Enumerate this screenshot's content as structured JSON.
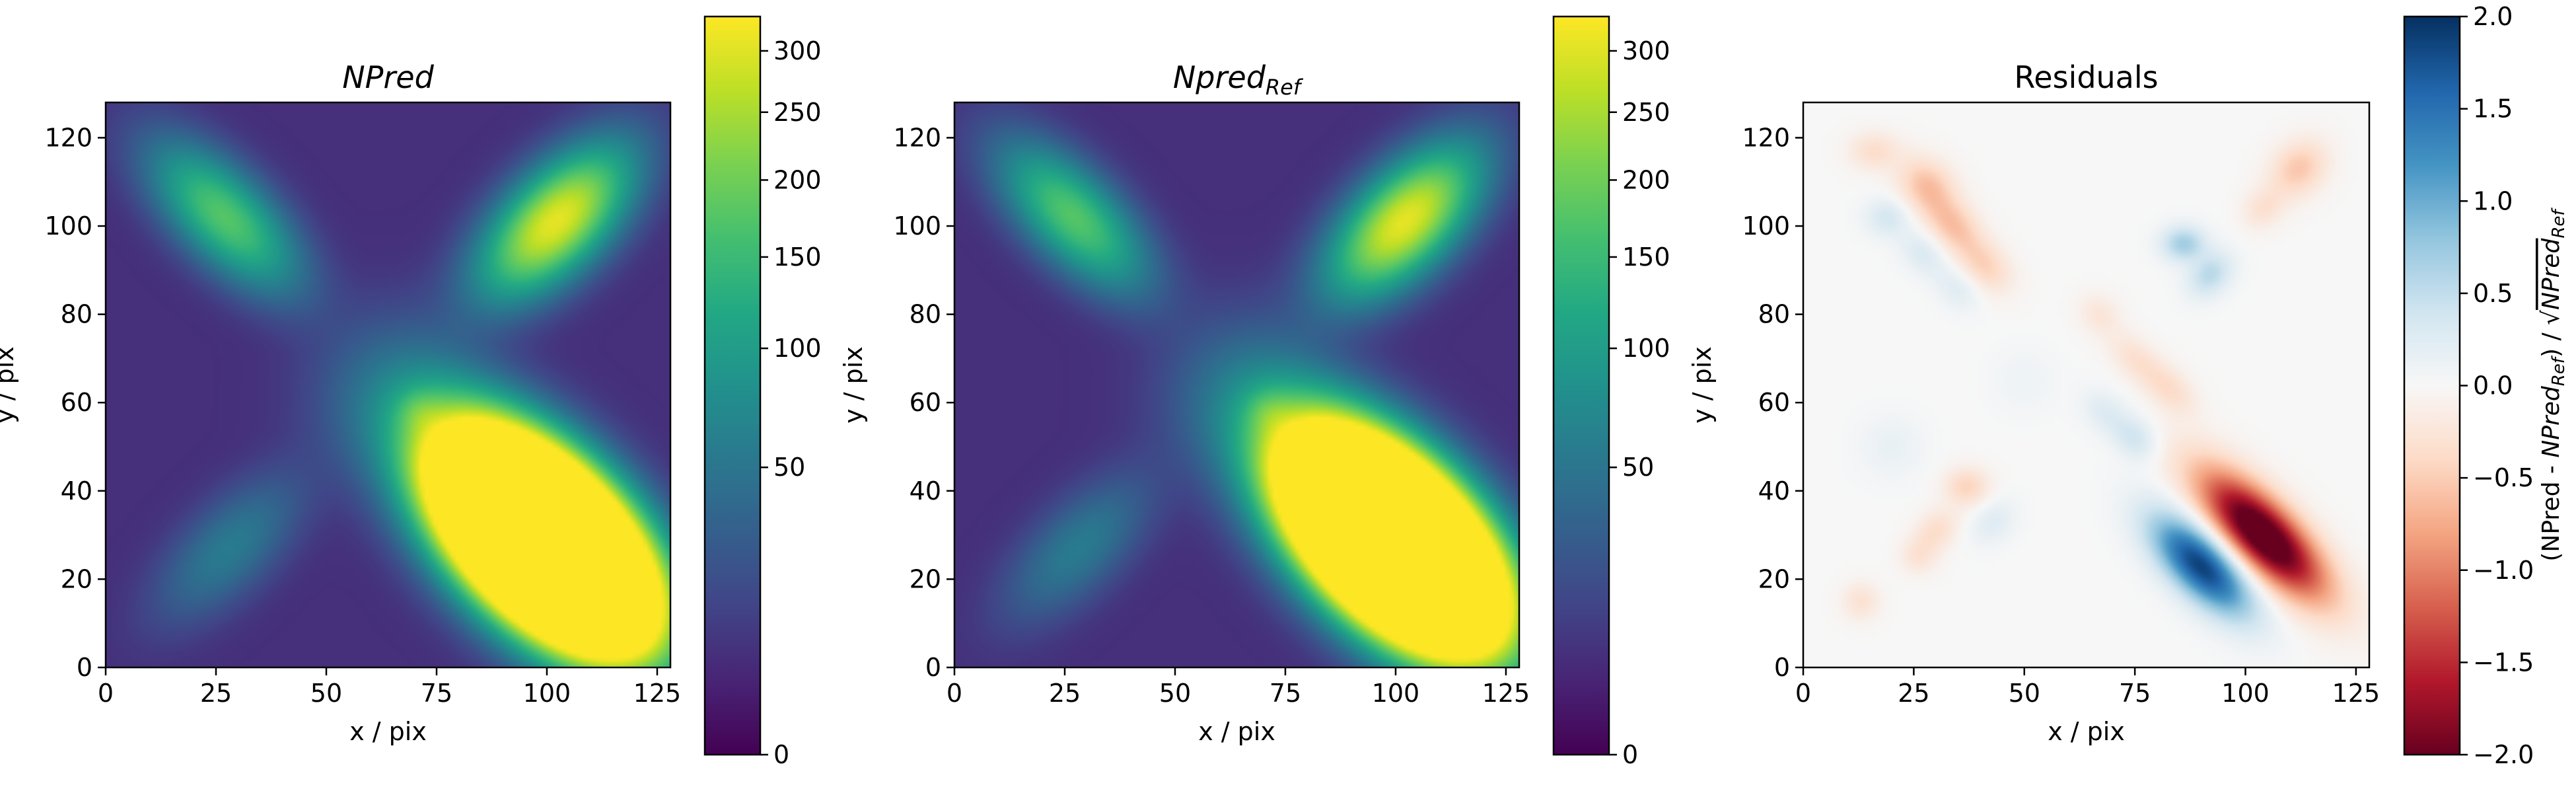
{
  "chart_data": [
    {
      "type": "heatmap",
      "title": "NPred",
      "title_style": "italic",
      "xlabel": "x / pix",
      "ylabel": "y / pix",
      "xlim": [
        0,
        128
      ],
      "ylim": [
        0,
        128
      ],
      "xticks": [
        0,
        25,
        50,
        75,
        100,
        125
      ],
      "yticks": [
        0,
        20,
        40,
        60,
        80,
        100,
        120
      ],
      "colormap": "viridis",
      "colorbar": {
        "scale": "sqrt",
        "range": [
          0,
          330
        ],
        "ticks": [
          0,
          50,
          100,
          150,
          200,
          250,
          300
        ],
        "label": ""
      },
      "components": [
        {
          "x": 27,
          "y": 102,
          "sx": 13,
          "sy": 6,
          "angle": -45,
          "peak": 170
        },
        {
          "x": 102,
          "y": 101,
          "sx": 13,
          "sy": 6.5,
          "angle": 45,
          "peak": 300
        },
        {
          "x": 67,
          "y": 61,
          "sx": 12,
          "sy": 12,
          "angle": 0,
          "peak": 40
        },
        {
          "x": 71,
          "y": 58,
          "sx": 3.5,
          "sy": 3.5,
          "angle": 0,
          "peak": 40
        },
        {
          "x": 28,
          "y": 27,
          "sx": 13,
          "sy": 6,
          "angle": 45,
          "peak": 50
        },
        {
          "x": 99,
          "y": 29,
          "sx": 17,
          "sy": 9,
          "angle": -45,
          "peak": 2400
        }
      ]
    },
    {
      "type": "heatmap",
      "title": "Npred",
      "title_subscript": "Ref",
      "title_style": "italic",
      "xlabel": "x / pix",
      "ylabel": "y / pix",
      "xlim": [
        0,
        128
      ],
      "ylim": [
        0,
        128
      ],
      "xticks": [
        0,
        25,
        50,
        75,
        100,
        125
      ],
      "yticks": [
        0,
        20,
        40,
        60,
        80,
        100,
        120
      ],
      "colormap": "viridis",
      "colorbar": {
        "scale": "sqrt",
        "range": [
          0,
          330
        ],
        "ticks": [
          0,
          50,
          100,
          150,
          200,
          250,
          300
        ],
        "label": ""
      },
      "components": [
        {
          "x": 27,
          "y": 102,
          "sx": 13,
          "sy": 6,
          "angle": -45,
          "peak": 170
        },
        {
          "x": 102,
          "y": 101,
          "sx": 13,
          "sy": 6.5,
          "angle": 45,
          "peak": 300
        },
        {
          "x": 67,
          "y": 61,
          "sx": 12,
          "sy": 12,
          "angle": 0,
          "peak": 40
        },
        {
          "x": 71,
          "y": 58,
          "sx": 3.5,
          "sy": 3.5,
          "angle": 0,
          "peak": 40
        },
        {
          "x": 28,
          "y": 27,
          "sx": 13,
          "sy": 6,
          "angle": 45,
          "peak": 50
        },
        {
          "x": 99,
          "y": 29,
          "sx": 17,
          "sy": 9,
          "angle": -45,
          "peak": 2400
        }
      ]
    },
    {
      "type": "heatmap",
      "title": "Residuals",
      "xlabel": "x / pix",
      "ylabel": "y / pix",
      "xlim": [
        0,
        128
      ],
      "ylim": [
        0,
        128
      ],
      "xticks": [
        0,
        25,
        50,
        75,
        100,
        125
      ],
      "yticks": [
        0,
        20,
        40,
        60,
        80,
        100,
        120
      ],
      "colormap": "RdBu",
      "colorbar": {
        "scale": "linear",
        "range": [
          -2,
          2
        ],
        "ticks": [
          -2,
          -1.5,
          -1,
          -0.5,
          0,
          0.5,
          1,
          1.5,
          2
        ],
        "tick_labels": [
          "−2.0",
          "−1.5",
          "−1.0",
          "−0.5",
          "0.0",
          "0.5",
          "1.0",
          "1.5",
          "2.0"
        ],
        "label_parts": [
          "(NPred - ",
          "NPred",
          "Ref",
          ") / √",
          "NPred",
          "Ref"
        ]
      },
      "components": [
        {
          "x": 104,
          "y": 30,
          "sx": 13,
          "sy": 5,
          "angle": -45,
          "peak": -2.4
        },
        {
          "x": 90,
          "y": 23,
          "sx": 10,
          "sy": 4.5,
          "angle": -45,
          "peak": 1.9
        },
        {
          "x": 16,
          "y": 117,
          "sx": 4,
          "sy": 3,
          "angle": 0,
          "peak": -0.35
        },
        {
          "x": 28,
          "y": 109,
          "sx": 5,
          "sy": 4,
          "angle": -45,
          "peak": -0.6
        },
        {
          "x": 34,
          "y": 100,
          "sx": 5,
          "sy": 3.5,
          "angle": -45,
          "peak": -0.55
        },
        {
          "x": 41,
          "y": 91,
          "sx": 5,
          "sy": 3.5,
          "angle": -45,
          "peak": -0.45
        },
        {
          "x": 19,
          "y": 102,
          "sx": 3.5,
          "sy": 3,
          "angle": 0,
          "peak": 0.35
        },
        {
          "x": 27,
          "y": 94,
          "sx": 4,
          "sy": 3,
          "angle": -45,
          "peak": 0.3
        },
        {
          "x": 35,
          "y": 86,
          "sx": 4,
          "sy": 3,
          "angle": -45,
          "peak": 0.25
        },
        {
          "x": 112,
          "y": 113,
          "sx": 5,
          "sy": 4,
          "angle": 45,
          "peak": -0.55
        },
        {
          "x": 104,
          "y": 104,
          "sx": 3.5,
          "sy": 3,
          "angle": 45,
          "peak": -0.3
        },
        {
          "x": 86,
          "y": 96,
          "sx": 3.5,
          "sy": 2.8,
          "angle": 0,
          "peak": 0.7
        },
        {
          "x": 92,
          "y": 89,
          "sx": 4,
          "sy": 3,
          "angle": 45,
          "peak": 0.55
        },
        {
          "x": 75,
          "y": 70,
          "sx": 5,
          "sy": 3,
          "angle": -45,
          "peak": -0.3
        },
        {
          "x": 83,
          "y": 63,
          "sx": 5,
          "sy": 3,
          "angle": -45,
          "peak": -0.35
        },
        {
          "x": 67,
          "y": 80,
          "sx": 3.5,
          "sy": 3,
          "angle": -45,
          "peak": -0.25
        },
        {
          "x": 75,
          "y": 52,
          "sx": 4,
          "sy": 3,
          "angle": -45,
          "peak": 0.4
        },
        {
          "x": 68,
          "y": 58,
          "sx": 4,
          "sy": 3,
          "angle": -45,
          "peak": 0.25
        },
        {
          "x": 37,
          "y": 41,
          "sx": 3.5,
          "sy": 3,
          "angle": 0,
          "peak": -0.45
        },
        {
          "x": 30,
          "y": 31,
          "sx": 4,
          "sy": 3,
          "angle": 45,
          "peak": -0.35
        },
        {
          "x": 26,
          "y": 25,
          "sx": 3,
          "sy": 2.8,
          "angle": 0,
          "peak": -0.25
        },
        {
          "x": 43,
          "y": 33,
          "sx": 4,
          "sy": 3,
          "angle": 45,
          "peak": 0.25
        },
        {
          "x": 13,
          "y": 15,
          "sx": 3,
          "sy": 3,
          "angle": 0,
          "peak": -0.3
        },
        {
          "x": 20,
          "y": 50,
          "sx": 5,
          "sy": 5,
          "angle": 0,
          "peak": 0.15
        },
        {
          "x": 50,
          "y": 65,
          "sx": 5,
          "sy": 5,
          "angle": 0,
          "peak": 0.1
        }
      ]
    }
  ]
}
